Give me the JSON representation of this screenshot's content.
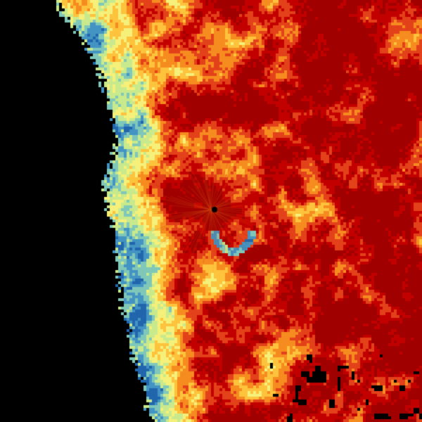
{
  "radar": {
    "background": "#000000",
    "palette": [
      "#2166ac",
      "#4393c3",
      "#7fc7b8",
      "#c8ea8c",
      "#f5f07a",
      "#fdc33c",
      "#f68b1f",
      "#e3411a",
      "#c30000",
      "#a00000"
    ],
    "center_marker_color": "#000000"
  }
}
